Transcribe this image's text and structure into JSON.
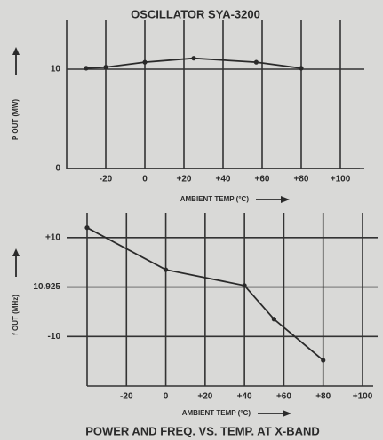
{
  "chart_data": [
    {
      "type": "line",
      "title": "OSCILLATOR SYA-3200",
      "xlabel": "AMBIENT TEMP (°C)",
      "ylabel": "P OUT (MW)",
      "x": [
        -30,
        -20,
        0,
        25,
        57,
        80
      ],
      "series": [
        {
          "color": "#2a2a2a",
          "values": [
            10.1,
            10.2,
            10.7,
            11.1,
            10.7,
            10.1
          ]
        }
      ],
      "xlim": [
        -40,
        110
      ],
      "xticks": [
        -20,
        0,
        {
          "value": 20,
          "label": "+20"
        },
        {
          "value": 40,
          "label": "+40"
        },
        {
          "value": 60,
          "label": "+60"
        },
        {
          "value": 80,
          "label": "+80"
        },
        {
          "value": 100,
          "label": "+100"
        }
      ],
      "ylim": [
        0,
        15
      ],
      "yticks": [
        0,
        10
      ],
      "grid": true
    },
    {
      "type": "line",
      "xlabel": "AMBIENT TEMP (°C)",
      "ylabel": "f OUT (MHz)",
      "x": [
        -40,
        0,
        40,
        55,
        80
      ],
      "series": [
        {
          "color": "#2a2a2a",
          "values": [
            12,
            3.5,
            0.3,
            -6.5,
            -14.8
          ]
        }
      ],
      "xlim": [
        -40,
        100
      ],
      "xticks": [
        -20,
        0,
        {
          "value": 20,
          "label": "+20"
        },
        {
          "value": 40,
          "label": "+40"
        },
        {
          "value": 60,
          "label": "+60"
        },
        {
          "value": 80,
          "label": "+80"
        },
        {
          "value": 100,
          "label": "+100"
        }
      ],
      "ylim": [
        -20,
        15
      ],
      "yticks": [
        {
          "value": 10,
          "label": "+10"
        },
        {
          "value": 0,
          "label": "10.925"
        },
        {
          "value": -10,
          "label": "-10"
        }
      ],
      "grid": true
    }
  ],
  "caption": "POWER AND FREQ. VS. TEMP. AT X-BAND"
}
